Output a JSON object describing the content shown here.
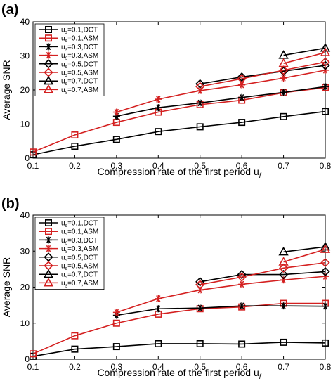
{
  "panels": [
    {
      "label": "(a)",
      "xlabel": "Compression rate of the first period u",
      "xlabel_sub": "f",
      "ylabel": "Average SNR"
    },
    {
      "label": "(b)",
      "xlabel": "Compression rate of the first period u",
      "xlabel_sub": "f",
      "ylabel": "Average SNR"
    }
  ],
  "colors": {
    "dct": "#000000",
    "asm": "#d42020",
    "axis": "#000000",
    "background": "#ffffff"
  },
  "chart_data": [
    {
      "type": "line",
      "title": "(a)",
      "xlabel": "Compression rate of the first period u_f",
      "ylabel": "Average SNR",
      "xlim": [
        0.1,
        0.8
      ],
      "ylim": [
        0,
        40
      ],
      "xticks": [
        0.1,
        0.2,
        0.3,
        0.4,
        0.5,
        0.6,
        0.7,
        0.8
      ],
      "yticks": [
        0,
        10,
        20,
        30,
        40
      ],
      "grid": false,
      "legend_position": "top-left",
      "series": [
        {
          "name": "u_s=0.1,DCT",
          "color": "#000000",
          "marker": "square",
          "x": [
            0.1,
            0.2,
            0.3,
            0.4,
            0.5,
            0.6,
            0.7,
            0.8
          ],
          "y": [
            1.0,
            3.5,
            5.5,
            7.8,
            9.2,
            10.5,
            12.2,
            13.7
          ]
        },
        {
          "name": "u_s=0.1,ASM",
          "color": "#d42020",
          "marker": "square",
          "x": [
            0.1,
            0.2,
            0.3,
            0.4,
            0.5,
            0.6,
            0.7,
            0.8
          ],
          "y": [
            1.8,
            6.8,
            10.5,
            13.5,
            15.7,
            17.0,
            19.2,
            20.7
          ]
        },
        {
          "name": "u_s=0.3,DCT",
          "color": "#000000",
          "marker": "asterisk",
          "x": [
            0.3,
            0.4,
            0.5,
            0.6,
            0.7,
            0.8
          ],
          "y": [
            12.3,
            14.8,
            16.2,
            17.8,
            19.3,
            21.0
          ]
        },
        {
          "name": "u_s=0.3,ASM",
          "color": "#d42020",
          "marker": "asterisk",
          "x": [
            0.3,
            0.4,
            0.5,
            0.6,
            0.7,
            0.8
          ],
          "y": [
            13.5,
            17.3,
            19.8,
            21.5,
            23.5,
            25.8
          ]
        },
        {
          "name": "u_s=0.5,DCT",
          "color": "#000000",
          "marker": "diamond",
          "x": [
            0.5,
            0.6,
            0.7,
            0.8
          ],
          "y": [
            21.8,
            23.8,
            25.5,
            27.2
          ]
        },
        {
          "name": "u_s=0.5,ASM",
          "color": "#d42020",
          "marker": "diamond",
          "x": [
            0.5,
            0.6,
            0.7,
            0.8
          ],
          "y": [
            21.0,
            23.3,
            25.8,
            28.2
          ]
        },
        {
          "name": "u_s=0.7,DCT",
          "color": "#000000",
          "marker": "triangle",
          "x": [
            0.7,
            0.8
          ],
          "y": [
            30.2,
            32.3
          ]
        },
        {
          "name": "u_s=0.7,ASM",
          "color": "#d42020",
          "marker": "triangle",
          "x": [
            0.7,
            0.8
          ],
          "y": [
            27.8,
            31.0
          ]
        }
      ]
    },
    {
      "type": "line",
      "title": "(b)",
      "xlabel": "Compression rate of the first period u_f",
      "ylabel": "Average SNR",
      "xlim": [
        0.1,
        0.8
      ],
      "ylim": [
        0,
        40
      ],
      "xticks": [
        0.1,
        0.2,
        0.3,
        0.4,
        0.5,
        0.6,
        0.7,
        0.8
      ],
      "yticks": [
        0,
        10,
        20,
        30,
        40
      ],
      "grid": false,
      "legend_position": "top-left",
      "series": [
        {
          "name": "u_s=0.1,DCT",
          "color": "#000000",
          "marker": "square",
          "x": [
            0.1,
            0.2,
            0.3,
            0.4,
            0.5,
            0.6,
            0.7,
            0.8
          ],
          "y": [
            0.8,
            2.8,
            3.5,
            4.3,
            4.3,
            4.2,
            4.7,
            4.5
          ]
        },
        {
          "name": "u_s=0.1,ASM",
          "color": "#d42020",
          "marker": "square",
          "x": [
            0.1,
            0.2,
            0.3,
            0.4,
            0.5,
            0.6,
            0.7,
            0.8
          ],
          "y": [
            1.5,
            6.5,
            10.0,
            12.5,
            14.0,
            14.5,
            15.5,
            15.5
          ]
        },
        {
          "name": "u_s=0.3,DCT",
          "color": "#000000",
          "marker": "asterisk",
          "x": [
            0.3,
            0.4,
            0.5,
            0.6,
            0.7,
            0.8
          ],
          "y": [
            12.2,
            14.0,
            14.2,
            14.8,
            14.8,
            14.7
          ]
        },
        {
          "name": "u_s=0.3,ASM",
          "color": "#d42020",
          "marker": "asterisk",
          "x": [
            0.3,
            0.4,
            0.5,
            0.6,
            0.7,
            0.8
          ],
          "y": [
            13.0,
            16.8,
            19.2,
            20.8,
            22.0,
            23.0
          ]
        },
        {
          "name": "u_s=0.5,DCT",
          "color": "#000000",
          "marker": "diamond",
          "x": [
            0.5,
            0.6,
            0.7,
            0.8
          ],
          "y": [
            21.5,
            23.5,
            23.5,
            24.3
          ]
        },
        {
          "name": "u_s=0.5,ASM",
          "color": "#d42020",
          "marker": "diamond",
          "x": [
            0.5,
            0.6,
            0.7,
            0.8
          ],
          "y": [
            20.7,
            22.8,
            25.3,
            26.8
          ]
        },
        {
          "name": "u_s=0.7,DCT",
          "color": "#000000",
          "marker": "triangle",
          "x": [
            0.7,
            0.8
          ],
          "y": [
            29.8,
            31.2
          ]
        },
        {
          "name": "u_s=0.7,ASM",
          "color": "#d42020",
          "marker": "triangle",
          "x": [
            0.7,
            0.8
          ],
          "y": [
            27.0,
            30.5
          ]
        }
      ]
    }
  ]
}
